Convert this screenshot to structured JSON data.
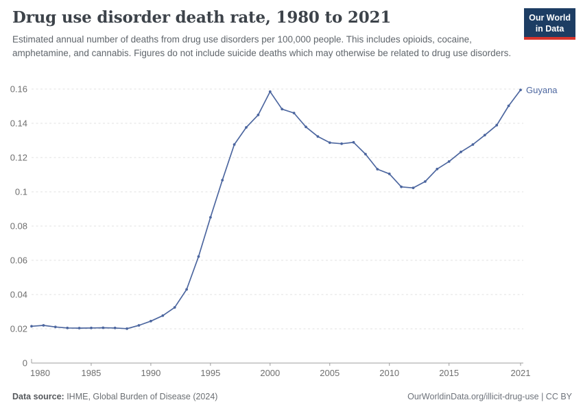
{
  "header": {
    "title": "Drug use disorder death rate, 1980 to 2021",
    "subtitle": "Estimated annual number of deaths from drug use disorders per 100,000 people. This includes opioids, cocaine, amphetamine, and cannabis. Figures do not include suicide deaths which may otherwise be related to drug use disorders."
  },
  "logo": {
    "line1": "Our World",
    "line2": "in Data",
    "bg_color": "#1d3d63",
    "accent_color": "#d7342c"
  },
  "footer": {
    "source_label": "Data source:",
    "source_text": " IHME, Global Burden of Disease (2024)",
    "link_text": "OurWorldinData.org/illicit-drug-use | CC BY"
  },
  "colors": {
    "line": "#4c669f",
    "grid": "#e2e2e2",
    "axis": "#9c9c9c",
    "tick_text": "#6e6e6e"
  },
  "chart_data": {
    "type": "line",
    "title": "Drug use disorder death rate, 1980 to 2021",
    "xlabel": "",
    "ylabel": "",
    "xlim": [
      1980,
      2021
    ],
    "ylim": [
      0,
      0.16
    ],
    "xticks": [
      1980,
      1985,
      1990,
      1995,
      2000,
      2005,
      2010,
      2015,
      2021
    ],
    "xtick_labels": [
      "1980",
      "1985",
      "1990",
      "1995",
      "2000",
      "2005",
      "2010",
      "2015",
      "2021"
    ],
    "yticks": [
      0,
      0.02,
      0.04,
      0.06,
      0.08,
      0.1,
      0.12,
      0.14,
      0.16
    ],
    "ytick_labels": [
      "0",
      "0.02",
      "0.04",
      "0.06",
      "0.08",
      "0.1",
      "0.12",
      "0.14",
      "0.16"
    ],
    "grid": "horizontal-dashed",
    "legend_position": "end-of-line-label",
    "series": [
      {
        "name": "Guyana",
        "color": "#4c669f",
        "x": [
          1980,
          1981,
          1982,
          1983,
          1984,
          1985,
          1986,
          1987,
          1988,
          1989,
          1990,
          1991,
          1992,
          1993,
          1994,
          1995,
          1996,
          1997,
          1998,
          1999,
          2000,
          2001,
          2002,
          2003,
          2004,
          2005,
          2006,
          2007,
          2008,
          2009,
          2010,
          2011,
          2012,
          2013,
          2014,
          2015,
          2016,
          2017,
          2018,
          2019,
          2020,
          2021
        ],
        "values": [
          0.0215,
          0.022,
          0.0211,
          0.0205,
          0.0204,
          0.0205,
          0.0206,
          0.0205,
          0.0201,
          0.022,
          0.0245,
          0.0277,
          0.0325,
          0.043,
          0.0622,
          0.0851,
          0.1068,
          0.1276,
          0.1376,
          0.1449,
          0.1585,
          0.1483,
          0.146,
          0.1379,
          0.1323,
          0.1287,
          0.1281,
          0.1289,
          0.122,
          0.1132,
          0.1105,
          0.1029,
          0.1023,
          0.106,
          0.1133,
          0.1177,
          0.1233,
          0.1276,
          0.1331,
          0.1389,
          0.1502,
          0.1595
        ]
      }
    ]
  }
}
